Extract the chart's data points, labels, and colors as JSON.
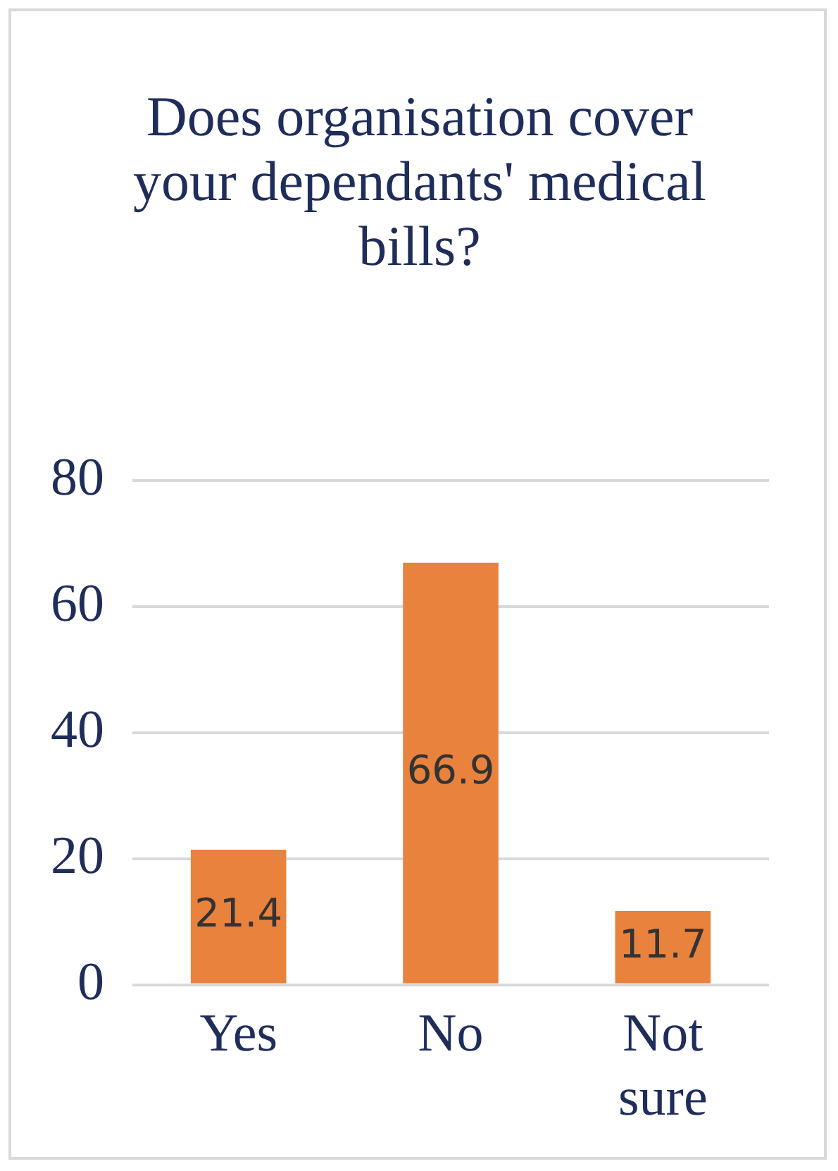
{
  "chart_data": {
    "type": "bar",
    "title": "Does organisation cover your dependants' medical bills?",
    "categories": [
      "Yes",
      "No",
      "Not sure"
    ],
    "values": [
      21.4,
      66.9,
      11.7
    ],
    "color": "#e8823d",
    "ylim": [
      0,
      80
    ],
    "yticks": [
      0,
      20,
      40,
      60,
      80
    ],
    "grid": "y",
    "data_labels": true
  }
}
